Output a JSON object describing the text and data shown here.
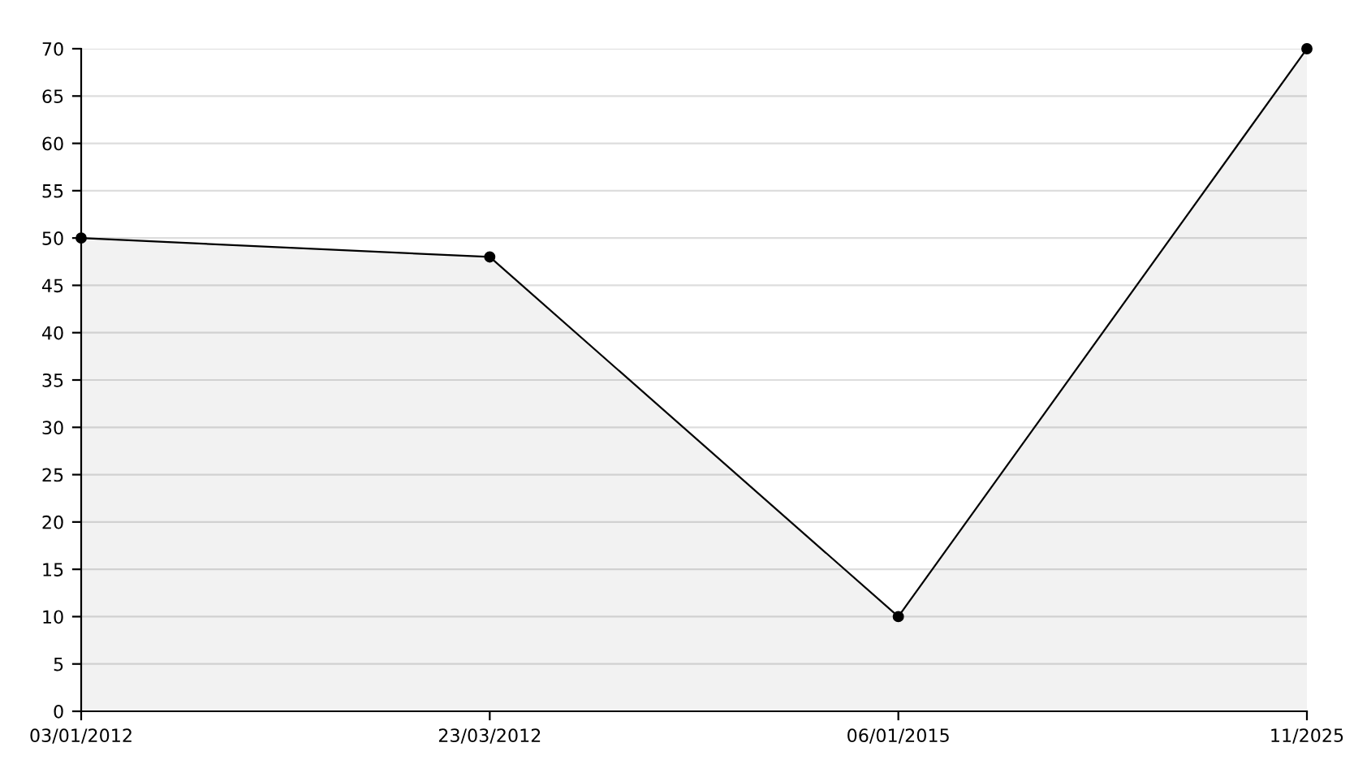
{
  "chart_data": {
    "type": "area",
    "categories": [
      "03/01/2012",
      "23/03/2012",
      "06/01/2015",
      "11/2025"
    ],
    "series": [
      {
        "color": "#000000",
        "values": [
          50,
          48,
          10,
          70
        ]
      }
    ],
    "ylim": [
      0,
      70
    ],
    "yticks": [
      0,
      5,
      10,
      15,
      20,
      25,
      30,
      35,
      40,
      45,
      50,
      55,
      60,
      65,
      70
    ],
    "grid": "y",
    "marker": "circle",
    "line_style": "solid"
  }
}
